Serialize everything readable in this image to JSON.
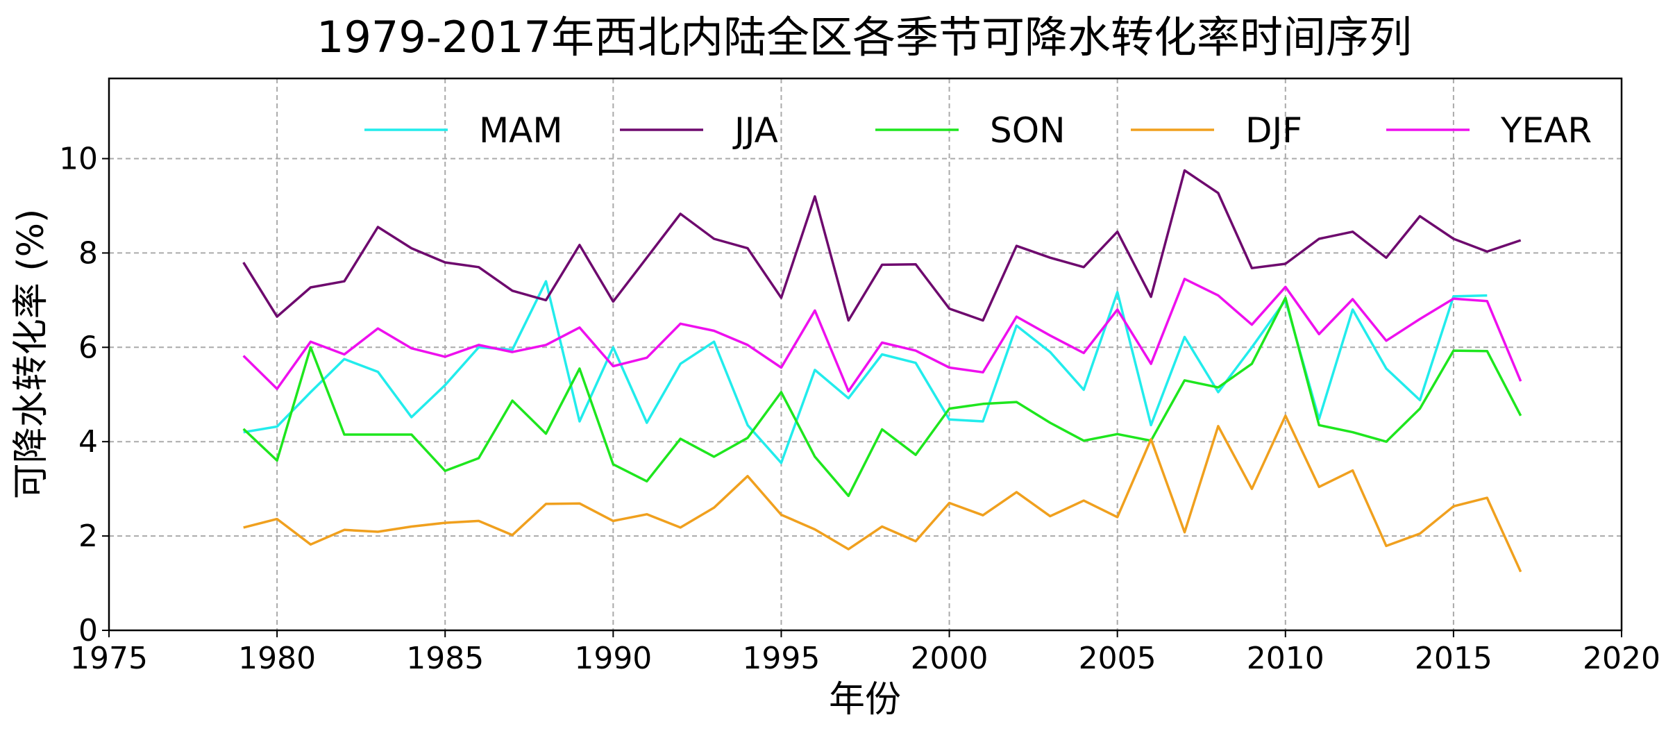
{
  "chart_data": {
    "type": "line",
    "title": "1979-2017年西北内陆全区各季节可降水转化率时间序列",
    "xlabel": "年份",
    "ylabel": "可降水转化率 (%)",
    "xlim": [
      1975,
      2020
    ],
    "ylim": [
      0,
      11.7
    ],
    "xticks": [
      1975,
      1980,
      1985,
      1990,
      1995,
      2000,
      2005,
      2010,
      2015,
      2020
    ],
    "yticks": [
      0,
      2,
      4,
      6,
      8,
      10
    ],
    "grid": true,
    "legend_position": "top",
    "x": [
      1979,
      1980,
      1981,
      1982,
      1983,
      1984,
      1985,
      1986,
      1987,
      1988,
      1989,
      1990,
      1991,
      1992,
      1993,
      1994,
      1995,
      1996,
      1997,
      1998,
      1999,
      2000,
      2001,
      2002,
      2003,
      2004,
      2005,
      2006,
      2007,
      2008,
      2009,
      2010,
      2011,
      2012,
      2013,
      2014,
      2015,
      2016,
      2017
    ],
    "series": [
      {
        "name": "MAM",
        "color": "#22ecec",
        "values": [
          4.2,
          4.32,
          5.05,
          5.75,
          5.48,
          4.52,
          5.2,
          6.0,
          5.95,
          7.4,
          4.43,
          6.0,
          4.4,
          5.65,
          6.12,
          4.35,
          3.55,
          5.52,
          4.92,
          5.85,
          5.67,
          4.47,
          4.43,
          6.46,
          5.9,
          5.1,
          7.17,
          4.35,
          6.22,
          5.05,
          6.0,
          7.0,
          4.48,
          6.8,
          5.55,
          4.88,
          7.08,
          7.1,
          null
        ]
      },
      {
        "name": "JJA",
        "color": "#6e0a6e",
        "values": [
          7.8,
          6.65,
          7.27,
          7.4,
          8.55,
          8.1,
          7.8,
          7.7,
          7.2,
          7.0,
          8.17,
          6.97,
          7.9,
          8.83,
          8.3,
          8.1,
          7.05,
          9.2,
          6.57,
          7.75,
          7.76,
          6.82,
          6.57,
          8.15,
          7.9,
          7.7,
          8.45,
          7.07,
          9.75,
          9.27,
          7.68,
          7.77,
          8.3,
          8.45,
          7.9,
          8.78,
          8.3,
          8.03,
          8.27
        ]
      },
      {
        "name": "SON",
        "color": "#1ee61e",
        "values": [
          4.27,
          3.6,
          6.0,
          4.15,
          4.15,
          4.15,
          3.38,
          3.65,
          4.87,
          4.17,
          5.55,
          3.52,
          3.16,
          4.06,
          3.68,
          4.08,
          5.05,
          3.68,
          2.85,
          4.26,
          3.72,
          4.7,
          4.8,
          4.84,
          4.4,
          4.02,
          4.16,
          4.02,
          5.3,
          5.15,
          5.65,
          7.05,
          4.35,
          4.2,
          4.0,
          4.7,
          5.93,
          5.92,
          4.55
        ]
      },
      {
        "name": "DJF",
        "color": "#f0a01e",
        "values": [
          2.18,
          2.36,
          1.82,
          2.13,
          2.09,
          2.2,
          2.28,
          2.32,
          2.02,
          2.68,
          2.69,
          2.32,
          2.46,
          2.18,
          2.6,
          3.27,
          2.45,
          2.14,
          1.72,
          2.2,
          1.89,
          2.7,
          2.44,
          2.93,
          2.42,
          2.75,
          2.4,
          4.05,
          2.08,
          4.33,
          3.0,
          4.55,
          3.04,
          3.39,
          1.79,
          2.05,
          2.63,
          2.81,
          1.24
        ]
      },
      {
        "name": "YEAR",
        "color": "#ee10ee",
        "values": [
          5.82,
          5.12,
          6.12,
          5.85,
          6.4,
          5.98,
          5.8,
          6.05,
          5.9,
          6.05,
          6.42,
          5.6,
          5.78,
          6.5,
          6.35,
          6.05,
          5.57,
          6.78,
          5.07,
          6.1,
          5.93,
          5.57,
          5.47,
          6.65,
          6.25,
          5.88,
          6.8,
          5.65,
          7.45,
          7.1,
          6.48,
          7.28,
          6.28,
          7.02,
          6.14,
          6.6,
          7.03,
          6.98,
          5.28
        ]
      }
    ]
  }
}
